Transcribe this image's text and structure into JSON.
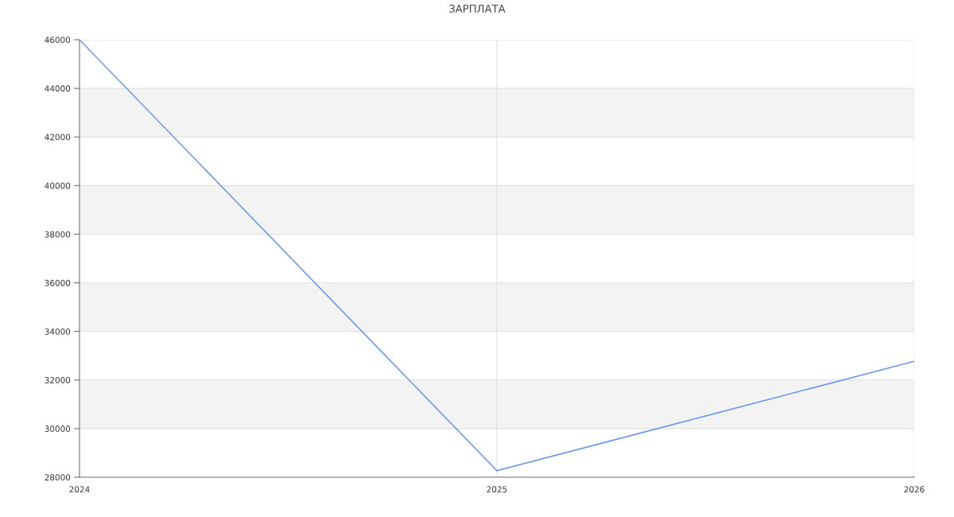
{
  "chart_data": {
    "type": "line",
    "title": "ЗАРПЛАТА",
    "x": [
      2024,
      2025,
      2026
    ],
    "series": [
      {
        "color": "#6495ed",
        "values": [
          46000,
          28270,
          32770
        ]
      }
    ],
    "xlim": [
      2024,
      2026
    ],
    "xticks": [
      2024,
      2025,
      2026
    ],
    "ylim": [
      28000,
      46000
    ],
    "yticks": [
      28000,
      30000,
      32000,
      34000,
      36000,
      38000,
      40000,
      42000,
      44000,
      46000
    ],
    "bands": [
      {
        "axis": "y",
        "from": 30000,
        "to": 32000,
        "color": "#f3f3f3"
      },
      {
        "axis": "y",
        "from": 34000,
        "to": 36000,
        "color": "#f3f3f3"
      },
      {
        "axis": "y",
        "from": 38000,
        "to": 40000,
        "color": "#f3f3f3"
      },
      {
        "axis": "y",
        "from": 42000,
        "to": 44000,
        "color": "#f3f3f3"
      }
    ],
    "grid": true,
    "legend": false,
    "marker": "none",
    "line_style": "solid"
  }
}
